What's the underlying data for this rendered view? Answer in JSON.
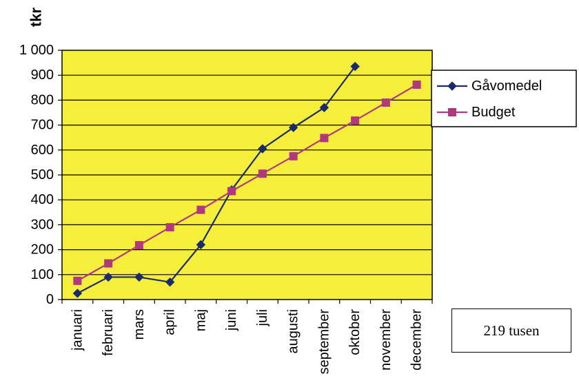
{
  "chart_data": {
    "type": "line",
    "ylabel": "tkr",
    "xlabel": "",
    "ylim": [
      0,
      1000
    ],
    "yticks": [
      0,
      100,
      200,
      300,
      400,
      500,
      600,
      700,
      800,
      900,
      1000
    ],
    "ytick_labels": [
      "0",
      "100",
      "200",
      "300",
      "400",
      "500",
      "600",
      "700",
      "800",
      "900",
      "1 000"
    ],
    "categories": [
      "januari",
      "februari",
      "mars",
      "april",
      "maj",
      "juni",
      "juli",
      "augusti",
      "september",
      "oktober",
      "november",
      "december"
    ],
    "grid": true,
    "plot_background": "#f5ef3c",
    "legend_position": "right",
    "series": [
      {
        "name": "Gåvomedel",
        "color": "#1a2a6e",
        "marker": "diamond",
        "values": [
          25,
          90,
          90,
          70,
          220,
          440,
          605,
          690,
          770,
          935,
          null,
          null
        ]
      },
      {
        "name": "Budget",
        "color": "#b0387f",
        "marker": "square",
        "values": [
          75,
          145,
          218,
          290,
          360,
          435,
          505,
          575,
          648,
          718,
          790,
          862
        ]
      }
    ]
  },
  "annotation": {
    "text": "219 tusen"
  }
}
